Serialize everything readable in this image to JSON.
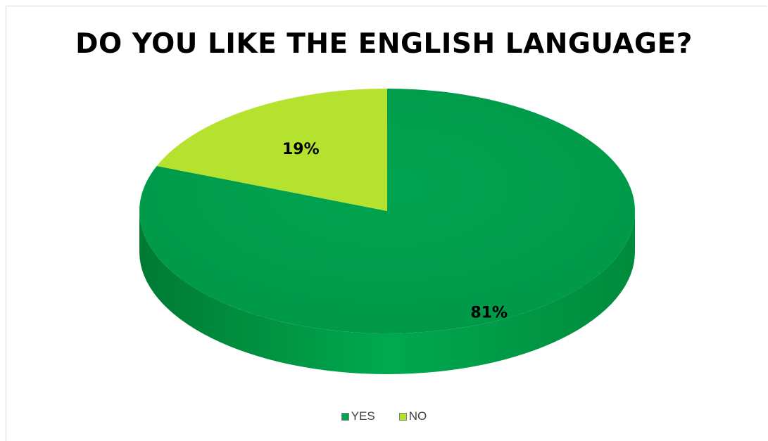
{
  "chart_data": {
    "type": "pie",
    "title": "DO YOU LIKE THE ENGLISH LANGUAGE?",
    "categories": [
      "YES",
      "NO"
    ],
    "values": [
      81,
      19
    ],
    "data_labels": [
      "81%",
      "19%"
    ],
    "colors": [
      "#00a550",
      "#b5e22e"
    ],
    "legend_position": "bottom",
    "style": "3d"
  }
}
